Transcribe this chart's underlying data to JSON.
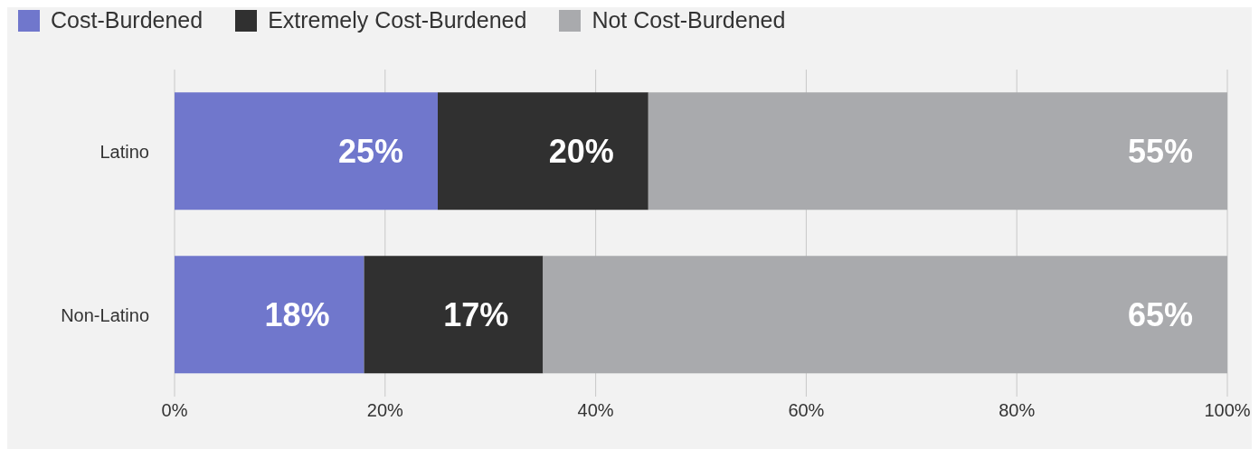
{
  "chart_data": {
    "type": "bar",
    "orientation": "horizontal",
    "stacked": true,
    "categories": [
      "Latino",
      "Non-Latino"
    ],
    "series": [
      {
        "name": "Cost-Burdened",
        "color": "#7077cc",
        "values": [
          25,
          18
        ],
        "value_labels": [
          "25%",
          "18%"
        ]
      },
      {
        "name": "Extremely Cost-Burdened",
        "color": "#303030",
        "values": [
          20,
          17
        ],
        "value_labels": [
          "20%",
          "17%"
        ]
      },
      {
        "name": "Not Cost-Burdened",
        "color": "#a9aaad",
        "values": [
          55,
          65
        ],
        "value_labels": [
          "55%",
          "65%"
        ]
      }
    ],
    "xlim": [
      0,
      100
    ],
    "xticks": [
      {
        "value": 0,
        "label": "0%"
      },
      {
        "value": 20,
        "label": "20%"
      },
      {
        "value": 40,
        "label": "40%"
      },
      {
        "value": 60,
        "label": "60%"
      },
      {
        "value": 80,
        "label": "80%"
      },
      {
        "value": 100,
        "label": "100%"
      }
    ],
    "grid": "x",
    "legend": "top left"
  }
}
